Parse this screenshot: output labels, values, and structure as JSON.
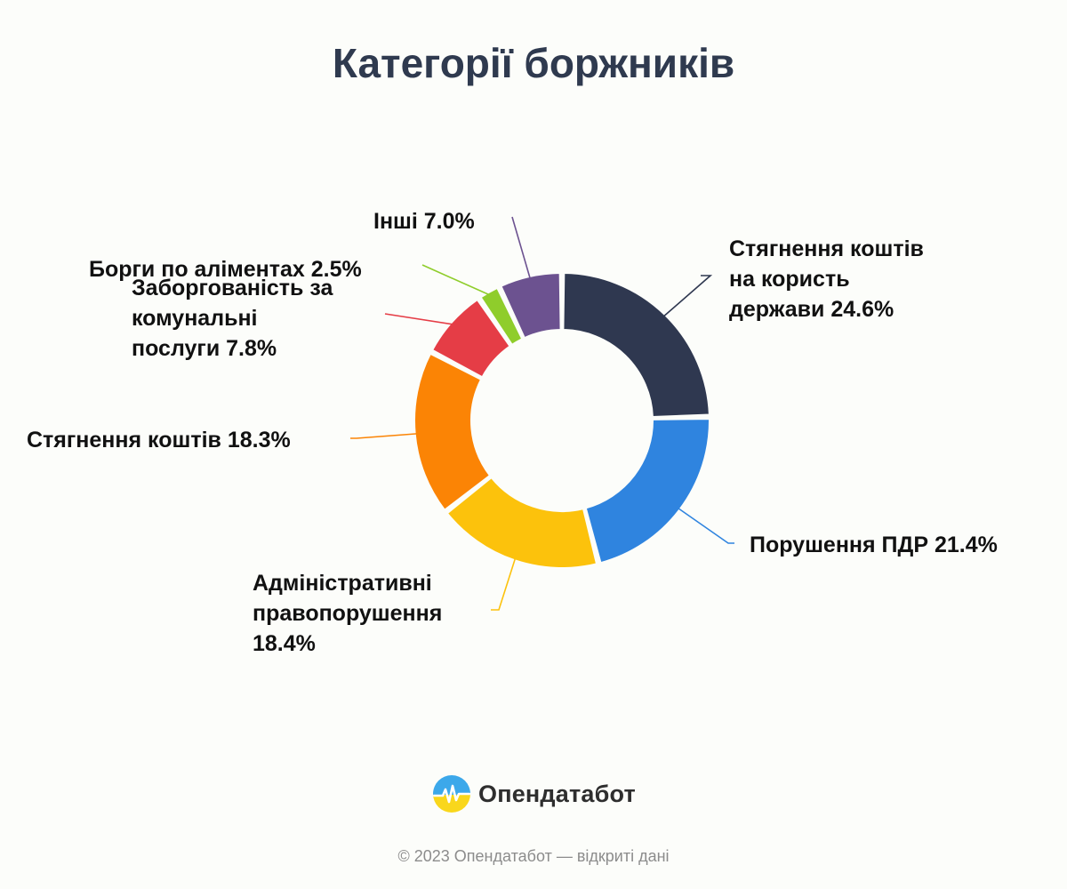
{
  "chart_data": {
    "type": "pie",
    "title": "Категорії боржників",
    "donut": true,
    "slices": [
      {
        "label": "Стягнення коштів на користь держави",
        "display_lines": [
          "Стягнення коштів",
          "на користь",
          "держави 24.6%"
        ],
        "value": 24.6,
        "color": "#2f3850"
      },
      {
        "label": "Порушення ПДР",
        "display_lines": [
          "Порушення ПДР 21.4%"
        ],
        "value": 21.4,
        "color": "#2f84df"
      },
      {
        "label": "Адміністративні правопорушення",
        "display_lines": [
          "Адміністративні",
          "правопорушення",
          "18.4%"
        ],
        "value": 18.4,
        "color": "#fcc20c"
      },
      {
        "label": "Стягнення коштів",
        "display_lines": [
          "Стягнення коштів 18.3%"
        ],
        "value": 18.3,
        "color": "#fb8405"
      },
      {
        "label": "Заборгованість за комунальні послуги",
        "display_lines": [
          "Заборгованість за",
          "комунальні",
          "послуги 7.8%"
        ],
        "value": 7.8,
        "color": "#e53d46"
      },
      {
        "label": "Борги по аліментах",
        "display_lines": [
          "Борги по аліментах 2.5%"
        ],
        "value": 2.5,
        "color": "#8fcd2b"
      },
      {
        "label": "Інші",
        "display_lines": [
          "Інші 7.0%"
        ],
        "value": 7.0,
        "color": "#6c5290"
      }
    ]
  },
  "brand": {
    "name": "Опендатабот",
    "logo_icon": "opendatabot-logo-icon"
  },
  "footer": {
    "copyright": "© 2023 Опендатабот — відкриті дані"
  }
}
